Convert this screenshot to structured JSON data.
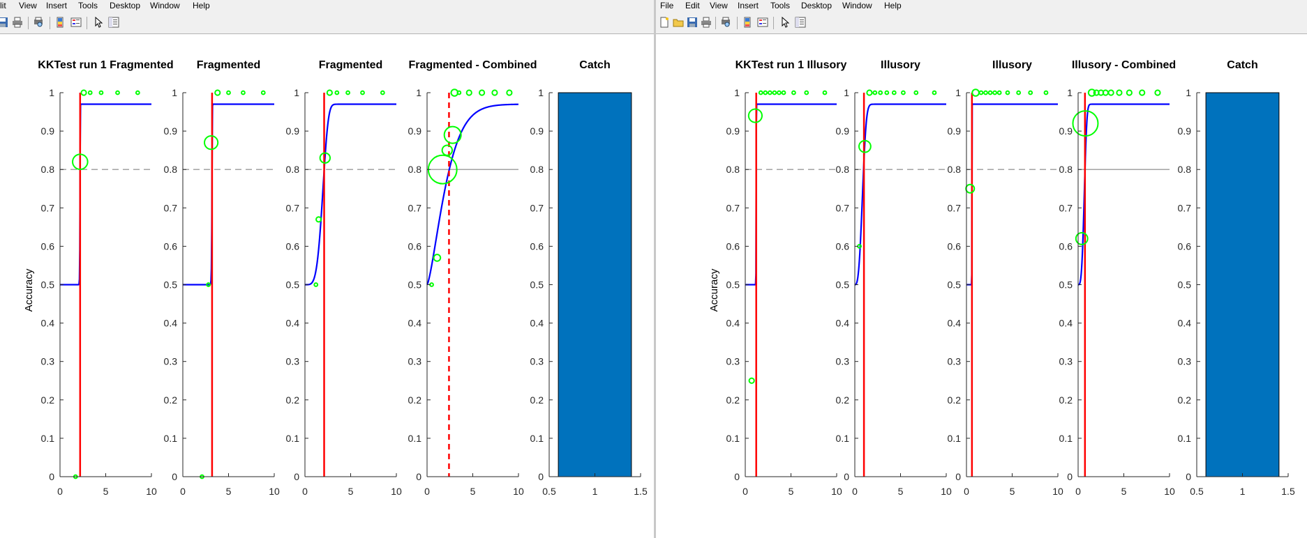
{
  "left_window": {
    "menu": [
      "lit",
      "View",
      "Insert",
      "Tools",
      "Desktop",
      "Window",
      "Help"
    ],
    "toolbar_icons": [
      "save-icon",
      "print-icon",
      "print-preview-icon",
      "colorbar-icon",
      "legend-icon",
      "pointer-icon",
      "property-editor-icon"
    ]
  },
  "right_window": {
    "menu": [
      "File",
      "Edit",
      "View",
      "Insert",
      "Tools",
      "Desktop",
      "Window",
      "Help"
    ],
    "toolbar_icons": [
      "new-figure-icon",
      "open-icon",
      "save-icon",
      "print-icon",
      "print-preview-icon",
      "colorbar-icon",
      "legend-icon",
      "pointer-icon",
      "property-editor-icon"
    ]
  },
  "colors": {
    "fit": "#0000ff",
    "threshold": "#ff0000",
    "data": "#00ff00",
    "criterion": "#999999",
    "bar": "#0072bd"
  },
  "chart_data": [
    {
      "type": "line",
      "title": "KKTest run 1 Fragmented",
      "ylabel": "Accuracy",
      "xlim": [
        0,
        10
      ],
      "ylim": [
        0,
        1
      ],
      "xticks": [
        "0",
        "5",
        "10"
      ],
      "yticks": [
        "0",
        "0.1",
        "0.2",
        "0.3",
        "0.4",
        "0.5",
        "0.6",
        "0.7",
        "0.8",
        "0.9",
        "1"
      ],
      "fit": {
        "guess": 0.5,
        "lapse": 0.97,
        "threshold": 2.2,
        "slope": 100
      },
      "threshold_line": {
        "x": 2.2,
        "style": "solid"
      },
      "criterion": {
        "y": 0.8,
        "style": "dashed"
      },
      "points": [
        {
          "x": 1.7,
          "y": 0,
          "size": 2
        },
        {
          "x": 2.2,
          "y": 0.82,
          "size": 9
        },
        {
          "x": 2.6,
          "y": 1,
          "size": 3
        },
        {
          "x": 3.3,
          "y": 1,
          "size": 2
        },
        {
          "x": 4.5,
          "y": 1,
          "size": 2
        },
        {
          "x": 6.3,
          "y": 1,
          "size": 2
        },
        {
          "x": 8.5,
          "y": 1,
          "size": 2
        }
      ]
    },
    {
      "type": "line",
      "title": "Fragmented",
      "ylabel": "",
      "xlim": [
        0,
        10
      ],
      "ylim": [
        0,
        1
      ],
      "xticks": [
        "0",
        "5",
        "10"
      ],
      "yticks": [
        "0",
        "0.1",
        "0.2",
        "0.3",
        "0.4",
        "0.5",
        "0.6",
        "0.7",
        "0.8",
        "0.9",
        "1"
      ],
      "fit": {
        "guess": 0.5,
        "lapse": 0.97,
        "threshold": 3.2,
        "slope": 100
      },
      "threshold_line": {
        "x": 3.2,
        "style": "solid"
      },
      "criterion": {
        "y": 0.8,
        "style": "dashed"
      },
      "points": [
        {
          "x": 2.1,
          "y": 0,
          "size": 2
        },
        {
          "x": 2.8,
          "y": 0.5,
          "size": 2
        },
        {
          "x": 3.1,
          "y": 0.87,
          "size": 8
        },
        {
          "x": 3.8,
          "y": 1,
          "size": 3
        },
        {
          "x": 5.0,
          "y": 1,
          "size": 2
        },
        {
          "x": 6.6,
          "y": 1,
          "size": 2
        },
        {
          "x": 8.8,
          "y": 1,
          "size": 2
        }
      ]
    },
    {
      "type": "line",
      "title": "Fragmented",
      "ylabel": "",
      "xlim": [
        0,
        10
      ],
      "ylim": [
        0,
        1
      ],
      "xticks": [
        "0",
        "5",
        "10"
      ],
      "yticks": [
        "0",
        "0.1",
        "0.2",
        "0.3",
        "0.4",
        "0.5",
        "0.6",
        "0.7",
        "0.8",
        "0.9",
        "1"
      ],
      "fit": {
        "guess": 0.5,
        "lapse": 0.97,
        "threshold": 2.1,
        "slope": 4.5
      },
      "threshold_line": {
        "x": 2.1,
        "style": "solid"
      },
      "criterion": {
        "y": 0.8,
        "style": "dashed"
      },
      "points": [
        {
          "x": 1.2,
          "y": 0.5,
          "size": 2
        },
        {
          "x": 1.5,
          "y": 0.67,
          "size": 3
        },
        {
          "x": 2.2,
          "y": 0.83,
          "size": 6
        },
        {
          "x": 2.7,
          "y": 1,
          "size": 3
        },
        {
          "x": 3.5,
          "y": 1,
          "size": 2
        },
        {
          "x": 4.7,
          "y": 1,
          "size": 2
        },
        {
          "x": 6.3,
          "y": 1,
          "size": 2
        },
        {
          "x": 8.5,
          "y": 1,
          "size": 2
        }
      ]
    },
    {
      "type": "line",
      "title": "Fragmented - Combined",
      "ylabel": "",
      "xlim": [
        0,
        10
      ],
      "ylim": [
        0,
        1
      ],
      "xticks": [
        "0",
        "5",
        "10"
      ],
      "yticks": [
        "0",
        "0.1",
        "0.2",
        "0.3",
        "0.4",
        "0.5",
        "0.6",
        "0.7",
        "0.8",
        "0.9",
        "1"
      ],
      "fit": {
        "guess": 0.5,
        "lapse": 0.97,
        "threshold": 2.4,
        "slope": 1.4
      },
      "threshold_line": {
        "x": 2.4,
        "style": "dashed"
      },
      "criterion": {
        "y": 0.8,
        "style": "solid"
      },
      "points": [
        {
          "x": 0.5,
          "y": 0.5,
          "size": 2
        },
        {
          "x": 1.1,
          "y": 0.57,
          "size": 4
        },
        {
          "x": 1.7,
          "y": 0.8,
          "size": 17
        },
        {
          "x": 2.2,
          "y": 0.85,
          "size": 6
        },
        {
          "x": 2.8,
          "y": 0.89,
          "size": 10
        },
        {
          "x": 3.0,
          "y": 1,
          "size": 4
        },
        {
          "x": 3.5,
          "y": 1,
          "size": 2
        },
        {
          "x": 4.6,
          "y": 1,
          "size": 3
        },
        {
          "x": 6.0,
          "y": 1,
          "size": 3
        },
        {
          "x": 7.4,
          "y": 1,
          "size": 3
        },
        {
          "x": 9.0,
          "y": 1,
          "size": 3
        }
      ]
    },
    {
      "type": "bar",
      "title": "Catch",
      "ylabel": "",
      "xlim": [
        0.5,
        1.5
      ],
      "ylim": [
        0,
        1
      ],
      "xticks": [
        "0.5",
        "1",
        "1.5"
      ],
      "yticks": [
        "0",
        "0.1",
        "0.2",
        "0.3",
        "0.4",
        "0.5",
        "0.6",
        "0.7",
        "0.8",
        "0.9",
        "1"
      ],
      "categories": [
        1
      ],
      "values": [
        1
      ],
      "bar_width": 0.8
    },
    {
      "type": "line",
      "title": "KKTest run 1 Illusory",
      "ylabel": "Accuracy",
      "xlim": [
        0,
        10
      ],
      "ylim": [
        0,
        1
      ],
      "xticks": [
        "0",
        "5",
        "10"
      ],
      "yticks": [
        "0",
        "0.1",
        "0.2",
        "0.3",
        "0.4",
        "0.5",
        "0.6",
        "0.7",
        "0.8",
        "0.9",
        "1"
      ],
      "fit": {
        "guess": 0.5,
        "lapse": 0.97,
        "threshold": 1.2,
        "slope": 100
      },
      "threshold_line": {
        "x": 1.2,
        "style": "solid"
      },
      "criterion": {
        "y": 0.8,
        "style": "dashed"
      },
      "points": [
        {
          "x": 0.7,
          "y": 0.25,
          "size": 3
        },
        {
          "x": 1.1,
          "y": 0.94,
          "size": 8
        },
        {
          "x": 1.7,
          "y": 1,
          "size": 2
        },
        {
          "x": 2.2,
          "y": 1,
          "size": 2
        },
        {
          "x": 2.7,
          "y": 1,
          "size": 2
        },
        {
          "x": 3.2,
          "y": 1,
          "size": 2
        },
        {
          "x": 3.7,
          "y": 1,
          "size": 2
        },
        {
          "x": 4.2,
          "y": 1,
          "size": 2
        },
        {
          "x": 5.3,
          "y": 1,
          "size": 2
        },
        {
          "x": 6.7,
          "y": 1,
          "size": 2
        },
        {
          "x": 8.7,
          "y": 1,
          "size": 2
        }
      ]
    },
    {
      "type": "line",
      "title": "Illusory",
      "ylabel": "",
      "xlim": [
        0,
        10
      ],
      "ylim": [
        0,
        1
      ],
      "xticks": [
        "0",
        "5",
        "10"
      ],
      "yticks": [
        "0",
        "0.1",
        "0.2",
        "0.3",
        "0.4",
        "0.5",
        "0.6",
        "0.7",
        "0.8",
        "0.9",
        "1"
      ],
      "fit": {
        "guess": 0.5,
        "lapse": 0.97,
        "threshold": 0.95,
        "slope": 3.0
      },
      "threshold_line": {
        "x": 1.0,
        "style": "solid"
      },
      "criterion": {
        "y": 0.8,
        "style": "dashed"
      },
      "points": [
        {
          "x": 0.5,
          "y": 0.6,
          "size": 2
        },
        {
          "x": 1.1,
          "y": 0.86,
          "size": 7
        },
        {
          "x": 1.6,
          "y": 1,
          "size": 3
        },
        {
          "x": 2.2,
          "y": 1,
          "size": 2
        },
        {
          "x": 2.8,
          "y": 1,
          "size": 2
        },
        {
          "x": 3.5,
          "y": 1,
          "size": 2
        },
        {
          "x": 4.3,
          "y": 1,
          "size": 2
        },
        {
          "x": 5.3,
          "y": 1,
          "size": 2
        },
        {
          "x": 6.7,
          "y": 1,
          "size": 2
        },
        {
          "x": 8.7,
          "y": 1,
          "size": 2
        }
      ]
    },
    {
      "type": "line",
      "title": "Illusory",
      "ylabel": "",
      "xlim": [
        0,
        10
      ],
      "ylim": [
        0,
        1
      ],
      "xticks": [
        "0",
        "5",
        "10"
      ],
      "yticks": [
        "0",
        "0.1",
        "0.2",
        "0.3",
        "0.4",
        "0.5",
        "0.6",
        "0.7",
        "0.8",
        "0.9",
        "1"
      ],
      "fit": {
        "guess": 0.5,
        "lapse": 0.97,
        "threshold": 0.6,
        "slope": 100
      },
      "threshold_line": {
        "x": 0.6,
        "style": "solid"
      },
      "criterion": {
        "y": 0.8,
        "style": "dashed"
      },
      "points": [
        {
          "x": 0.4,
          "y": 0.75,
          "size": 5
        },
        {
          "x": 1.0,
          "y": 1,
          "size": 4
        },
        {
          "x": 1.6,
          "y": 1,
          "size": 2
        },
        {
          "x": 2.1,
          "y": 1,
          "size": 2
        },
        {
          "x": 2.6,
          "y": 1,
          "size": 2
        },
        {
          "x": 3.1,
          "y": 1,
          "size": 2
        },
        {
          "x": 3.6,
          "y": 1,
          "size": 2
        },
        {
          "x": 4.5,
          "y": 1,
          "size": 2
        },
        {
          "x": 5.7,
          "y": 1,
          "size": 2
        },
        {
          "x": 7.0,
          "y": 1,
          "size": 2
        },
        {
          "x": 8.7,
          "y": 1,
          "size": 2
        }
      ]
    },
    {
      "type": "line",
      "title": "Illusory - Combined",
      "ylabel": "",
      "xlim": [
        0,
        10
      ],
      "ylim": [
        0,
        1
      ],
      "xticks": [
        "0",
        "5",
        "10"
      ],
      "yticks": [
        "0",
        "0.1",
        "0.2",
        "0.3",
        "0.4",
        "0.5",
        "0.6",
        "0.7",
        "0.8",
        "0.9",
        "1"
      ],
      "fit": {
        "guess": 0.5,
        "lapse": 0.97,
        "threshold": 0.75,
        "slope": 3.5
      },
      "threshold_line": {
        "x": 0.75,
        "style": "solid"
      },
      "criterion": {
        "y": 0.8,
        "style": "solid"
      },
      "points": [
        {
          "x": 0.4,
          "y": 0.62,
          "size": 7
        },
        {
          "x": 0.8,
          "y": 0.92,
          "size": 15
        },
        {
          "x": 1.5,
          "y": 1,
          "size": 4
        },
        {
          "x": 2.0,
          "y": 1,
          "size": 3
        },
        {
          "x": 2.5,
          "y": 1,
          "size": 3
        },
        {
          "x": 3.0,
          "y": 1,
          "size": 3
        },
        {
          "x": 3.6,
          "y": 1,
          "size": 3
        },
        {
          "x": 4.5,
          "y": 1,
          "size": 3
        },
        {
          "x": 5.6,
          "y": 1,
          "size": 3
        },
        {
          "x": 7.0,
          "y": 1,
          "size": 3
        },
        {
          "x": 8.7,
          "y": 1,
          "size": 3
        }
      ]
    },
    {
      "type": "bar",
      "title": "Catch",
      "ylabel": "",
      "xlim": [
        0.5,
        1.5
      ],
      "ylim": [
        0,
        1
      ],
      "xticks": [
        "0.5",
        "1",
        "1.5"
      ],
      "yticks": [
        "0",
        "0.1",
        "0.2",
        "0.3",
        "0.4",
        "0.5",
        "0.6",
        "0.7",
        "0.8",
        "0.9",
        "1"
      ],
      "categories": [
        1
      ],
      "values": [
        1
      ],
      "bar_width": 0.8
    }
  ]
}
